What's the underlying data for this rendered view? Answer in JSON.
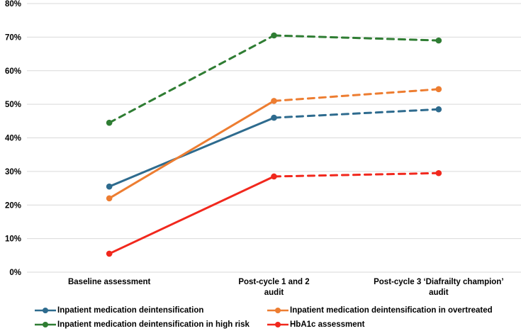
{
  "chart_data": {
    "type": "line",
    "title": "",
    "xlabel": "",
    "ylabel": "",
    "categories": [
      "Baseline assessment",
      "Post-cycle 1 and 2 audit",
      "Post-cycle 3 ‘Diafrailty champion’ audit"
    ],
    "categories_display": [
      [
        "Baseline assessment"
      ],
      [
        "Post-cycle 1 and 2",
        "audit"
      ],
      [
        "Post-cycle 3 ‘Diafrailty champion’",
        "audit"
      ]
    ],
    "ylim": [
      0,
      80
    ],
    "ytick_labels": [
      "0%",
      "10%",
      "20%",
      "30%",
      "40%",
      "50%",
      "60%",
      "70%",
      "80%"
    ],
    "ytick_values": [
      0,
      10,
      20,
      30,
      40,
      50,
      60,
      70,
      80
    ],
    "grid": true,
    "legend_position": "bottom",
    "series": [
      {
        "name": "Inpatient medication deintensification",
        "color": "#2e6b8e",
        "values": [
          25.5,
          46,
          48.5
        ],
        "segment_styles": [
          "solid",
          "dashed"
        ]
      },
      {
        "name": "Inpatient medication deintensification in overtreated",
        "color": "#ed7d31",
        "values": [
          22,
          51,
          54.5
        ],
        "segment_styles": [
          "solid",
          "dashed"
        ]
      },
      {
        "name": "Inpatient medication deintensification in high risk",
        "color": "#2f7d33",
        "values": [
          44.5,
          70.5,
          69
        ],
        "segment_styles": [
          "dashed",
          "dashed"
        ]
      },
      {
        "name": "HbA1c assessment",
        "color": "#f1281d",
        "values": [
          5.5,
          28.5,
          29.5
        ],
        "segment_styles": [
          "solid",
          "dashed"
        ]
      }
    ]
  },
  "legend": {
    "order": [
      0,
      1,
      2,
      3
    ]
  }
}
